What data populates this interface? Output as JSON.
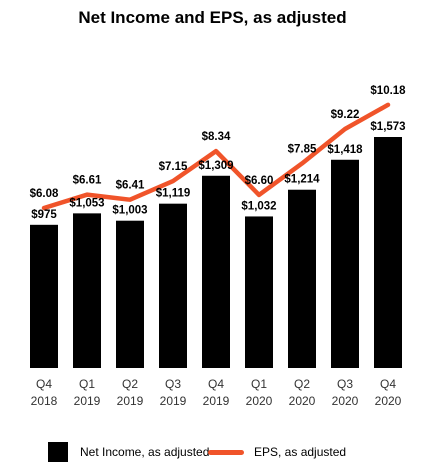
{
  "chart_data": {
    "type": "bar",
    "title": "Net Income and EPS, as adjusted",
    "categories": [
      [
        "Q4",
        "2018"
      ],
      [
        "Q1",
        "2019"
      ],
      [
        "Q2",
        "2019"
      ],
      [
        "Q3",
        "2019"
      ],
      [
        "Q4",
        "2019"
      ],
      [
        "Q1",
        "2020"
      ],
      [
        "Q2",
        "2020"
      ],
      [
        "Q3",
        "2020"
      ],
      [
        "Q4",
        "2020"
      ]
    ],
    "series": [
      {
        "name": "Net Income, as adjusted",
        "type": "bar",
        "color": "#000000",
        "values": [
          975,
          1053,
          1003,
          1119,
          1309,
          1032,
          1214,
          1418,
          1573
        ],
        "labels": [
          "$975",
          "$1,053",
          "$1,003",
          "$1,119",
          "$1,309",
          "$1,032",
          "$1,214",
          "$1,418",
          "$1,573"
        ]
      },
      {
        "name": "EPS, as adjusted",
        "type": "line",
        "color": "#f0542a",
        "values": [
          6.08,
          6.61,
          6.41,
          7.15,
          8.34,
          6.6,
          7.85,
          9.22,
          10.18
        ],
        "labels": [
          "$6.08",
          "$6.61",
          "$6.41",
          "$7.15",
          "$8.34",
          "$6.60",
          "$7.85",
          "$9.22",
          "$10.18"
        ]
      }
    ],
    "legend": {
      "position": "bottom"
    },
    "grid": false
  }
}
